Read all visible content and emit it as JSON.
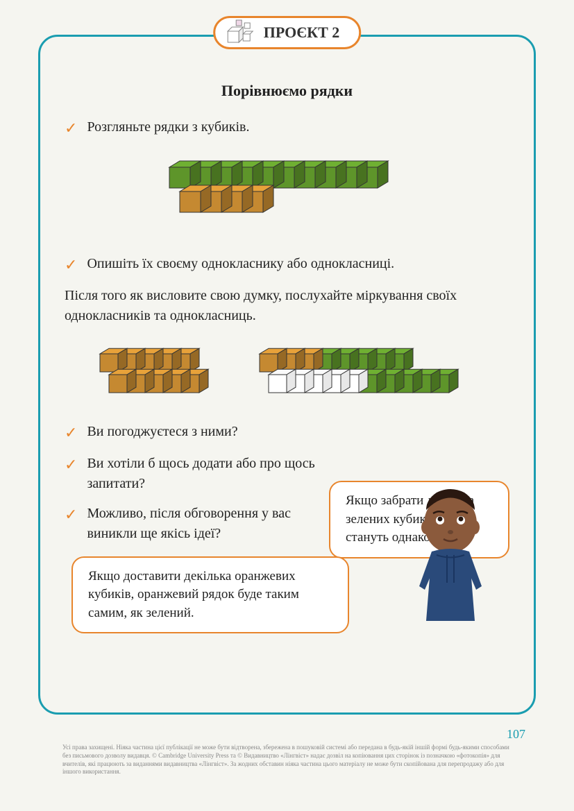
{
  "badge": {
    "label": "ПРОЄКТ 2"
  },
  "subtitle": "Порівнюємо рядки",
  "items": {
    "i1": "Розгляньте рядки з кубиків.",
    "i2": "Опишіть їх своєму однокласнику або однокласниці.",
    "i3": "Ви погоджуєтеся з ними?",
    "i4": "Ви хотіли б щось додати або про щось запитати?",
    "i5": "Можливо, після обговорення у вас виникли ще якісь ідеї?"
  },
  "paragraph": "Після того як висловите свою думку, послухайте міркування своїх однокласників та однокласниць.",
  "speech": {
    "s1": "Якщо забрати декілька зелених кубиків, рядки стануть однаковими.",
    "s2": "Якщо доставити декілька оранжевих кубиків, оранжевий рядок буде таким самим, як зелений."
  },
  "pageNumber": "107",
  "copyright": "Усі права захищені. Ніяка частина цієї публікації не може бути відтворена, збережена в пошуковій системі або передана в будь-якій іншій формі будь-якими способами без письмового дозволу видавця. © Cambridge University Press та © Видавництво «Лінгвіст» надає дозвіл на копіювання цих сторінок із позначкою «фотокопія» для вчителів, які працюють за виданнями видавництва «Лінгвіст». За жодних обставин ніяка частина цього матеріалу не може бути скопійована для перепродажу або для іншого використання.",
  "cubes": {
    "fig1": {
      "rows": [
        {
          "color": "#6fb032",
          "count": 10
        },
        {
          "color": "#e8a23a",
          "count": 4
        }
      ]
    },
    "fig2a": {
      "rows": [
        {
          "color": "#e8a23a",
          "count": 5
        },
        {
          "color": "#e8a23a",
          "count": 5
        }
      ]
    },
    "fig2b": {
      "rows": [
        {
          "colors": [
            "#e8a23a",
            "#e8a23a",
            "#e8a23a",
            "#6fb032",
            "#6fb032",
            "#6fb032",
            "#6fb032",
            "#6fb032"
          ]
        },
        {
          "colors": [
            "#ffffff",
            "#ffffff",
            "#ffffff",
            "#ffffff",
            "#ffffff",
            "#6fb032",
            "#6fb032",
            "#6fb032",
            "#6fb032",
            "#6fb032"
          ]
        }
      ]
    }
  },
  "colors": {
    "frameBorder": "#1a9db0",
    "accent": "#e8852c",
    "cubeGreen": "#6fb032",
    "cubeOrange": "#e8a23a",
    "cubeWhite": "#ffffff"
  }
}
